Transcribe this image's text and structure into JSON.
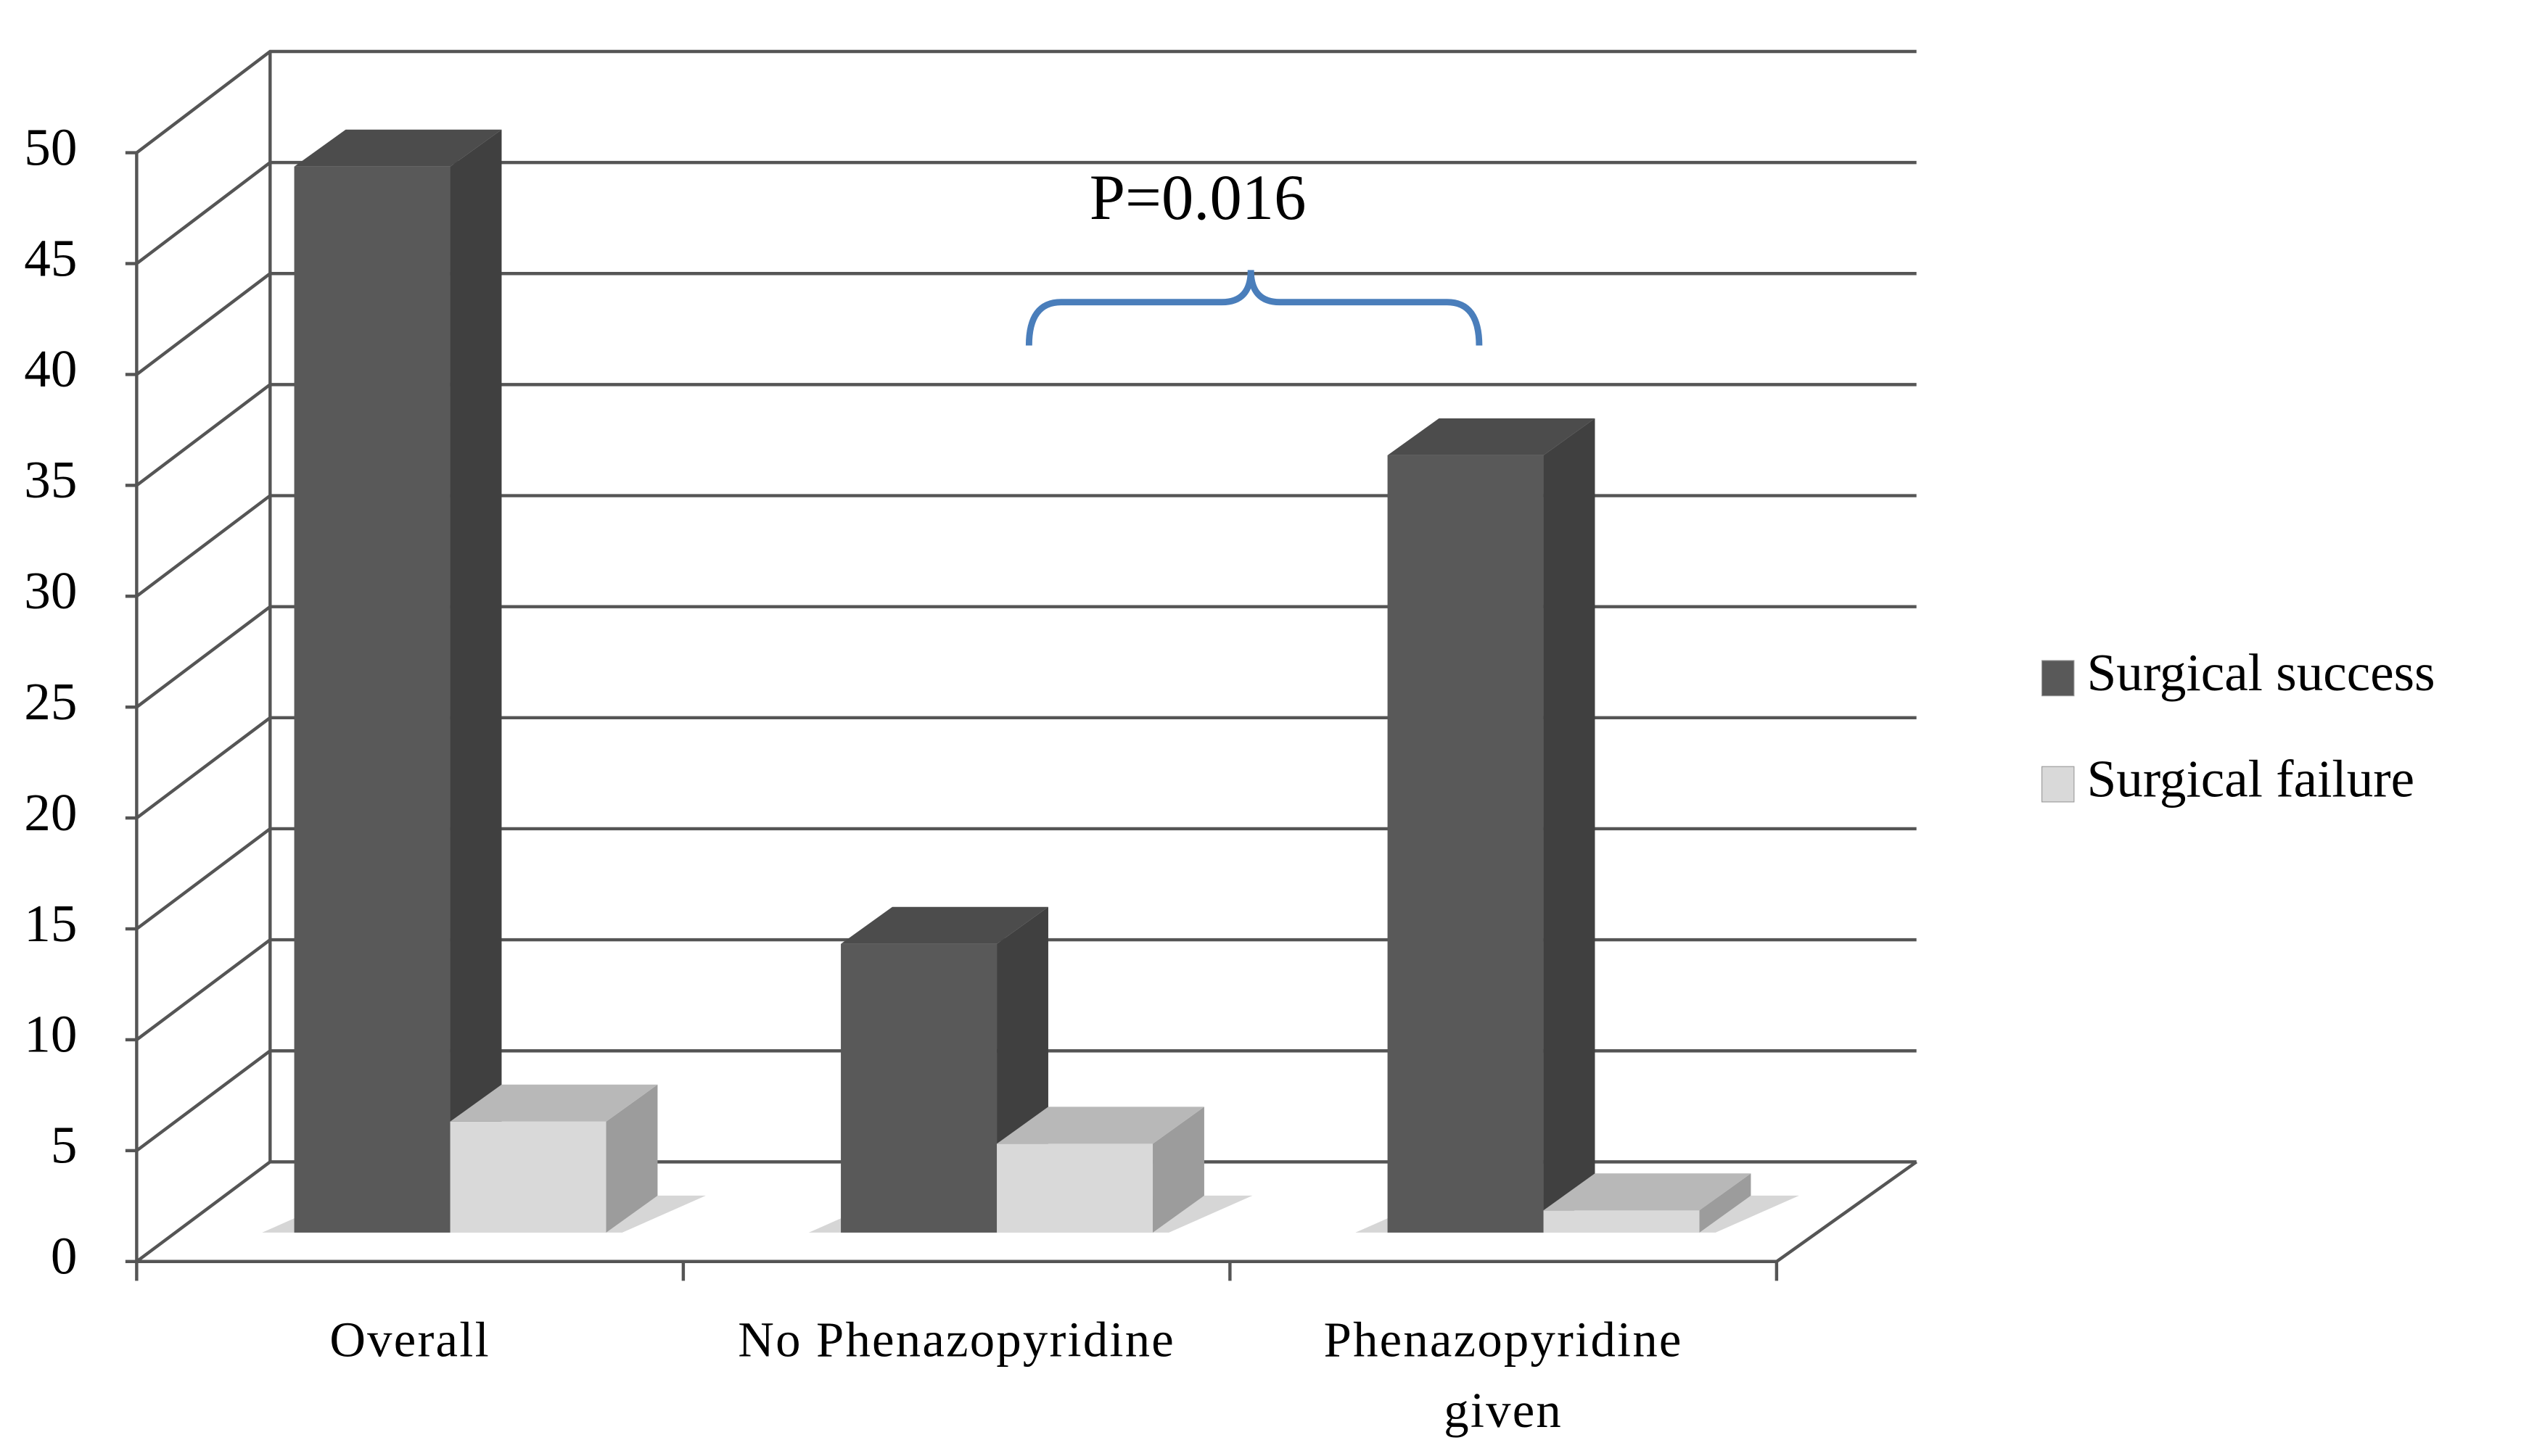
{
  "chart_data": {
    "type": "bar3d",
    "categories": [
      "Overall",
      "No Phenazopyridine",
      "Phenazopyridine given"
    ],
    "series": [
      {
        "name": "Surgical success",
        "color": "#595959",
        "values": [
          48,
          13,
          35
        ]
      },
      {
        "name": "Surgical failure",
        "color": "#d9d9d9",
        "values": [
          5,
          4,
          1
        ]
      }
    ],
    "ylim": [
      0,
      50
    ],
    "yticks": [
      0,
      5,
      10,
      15,
      20,
      25,
      30,
      35,
      40,
      45,
      50
    ],
    "grid": true,
    "legend": "right",
    "annotation": "P=0.016"
  }
}
